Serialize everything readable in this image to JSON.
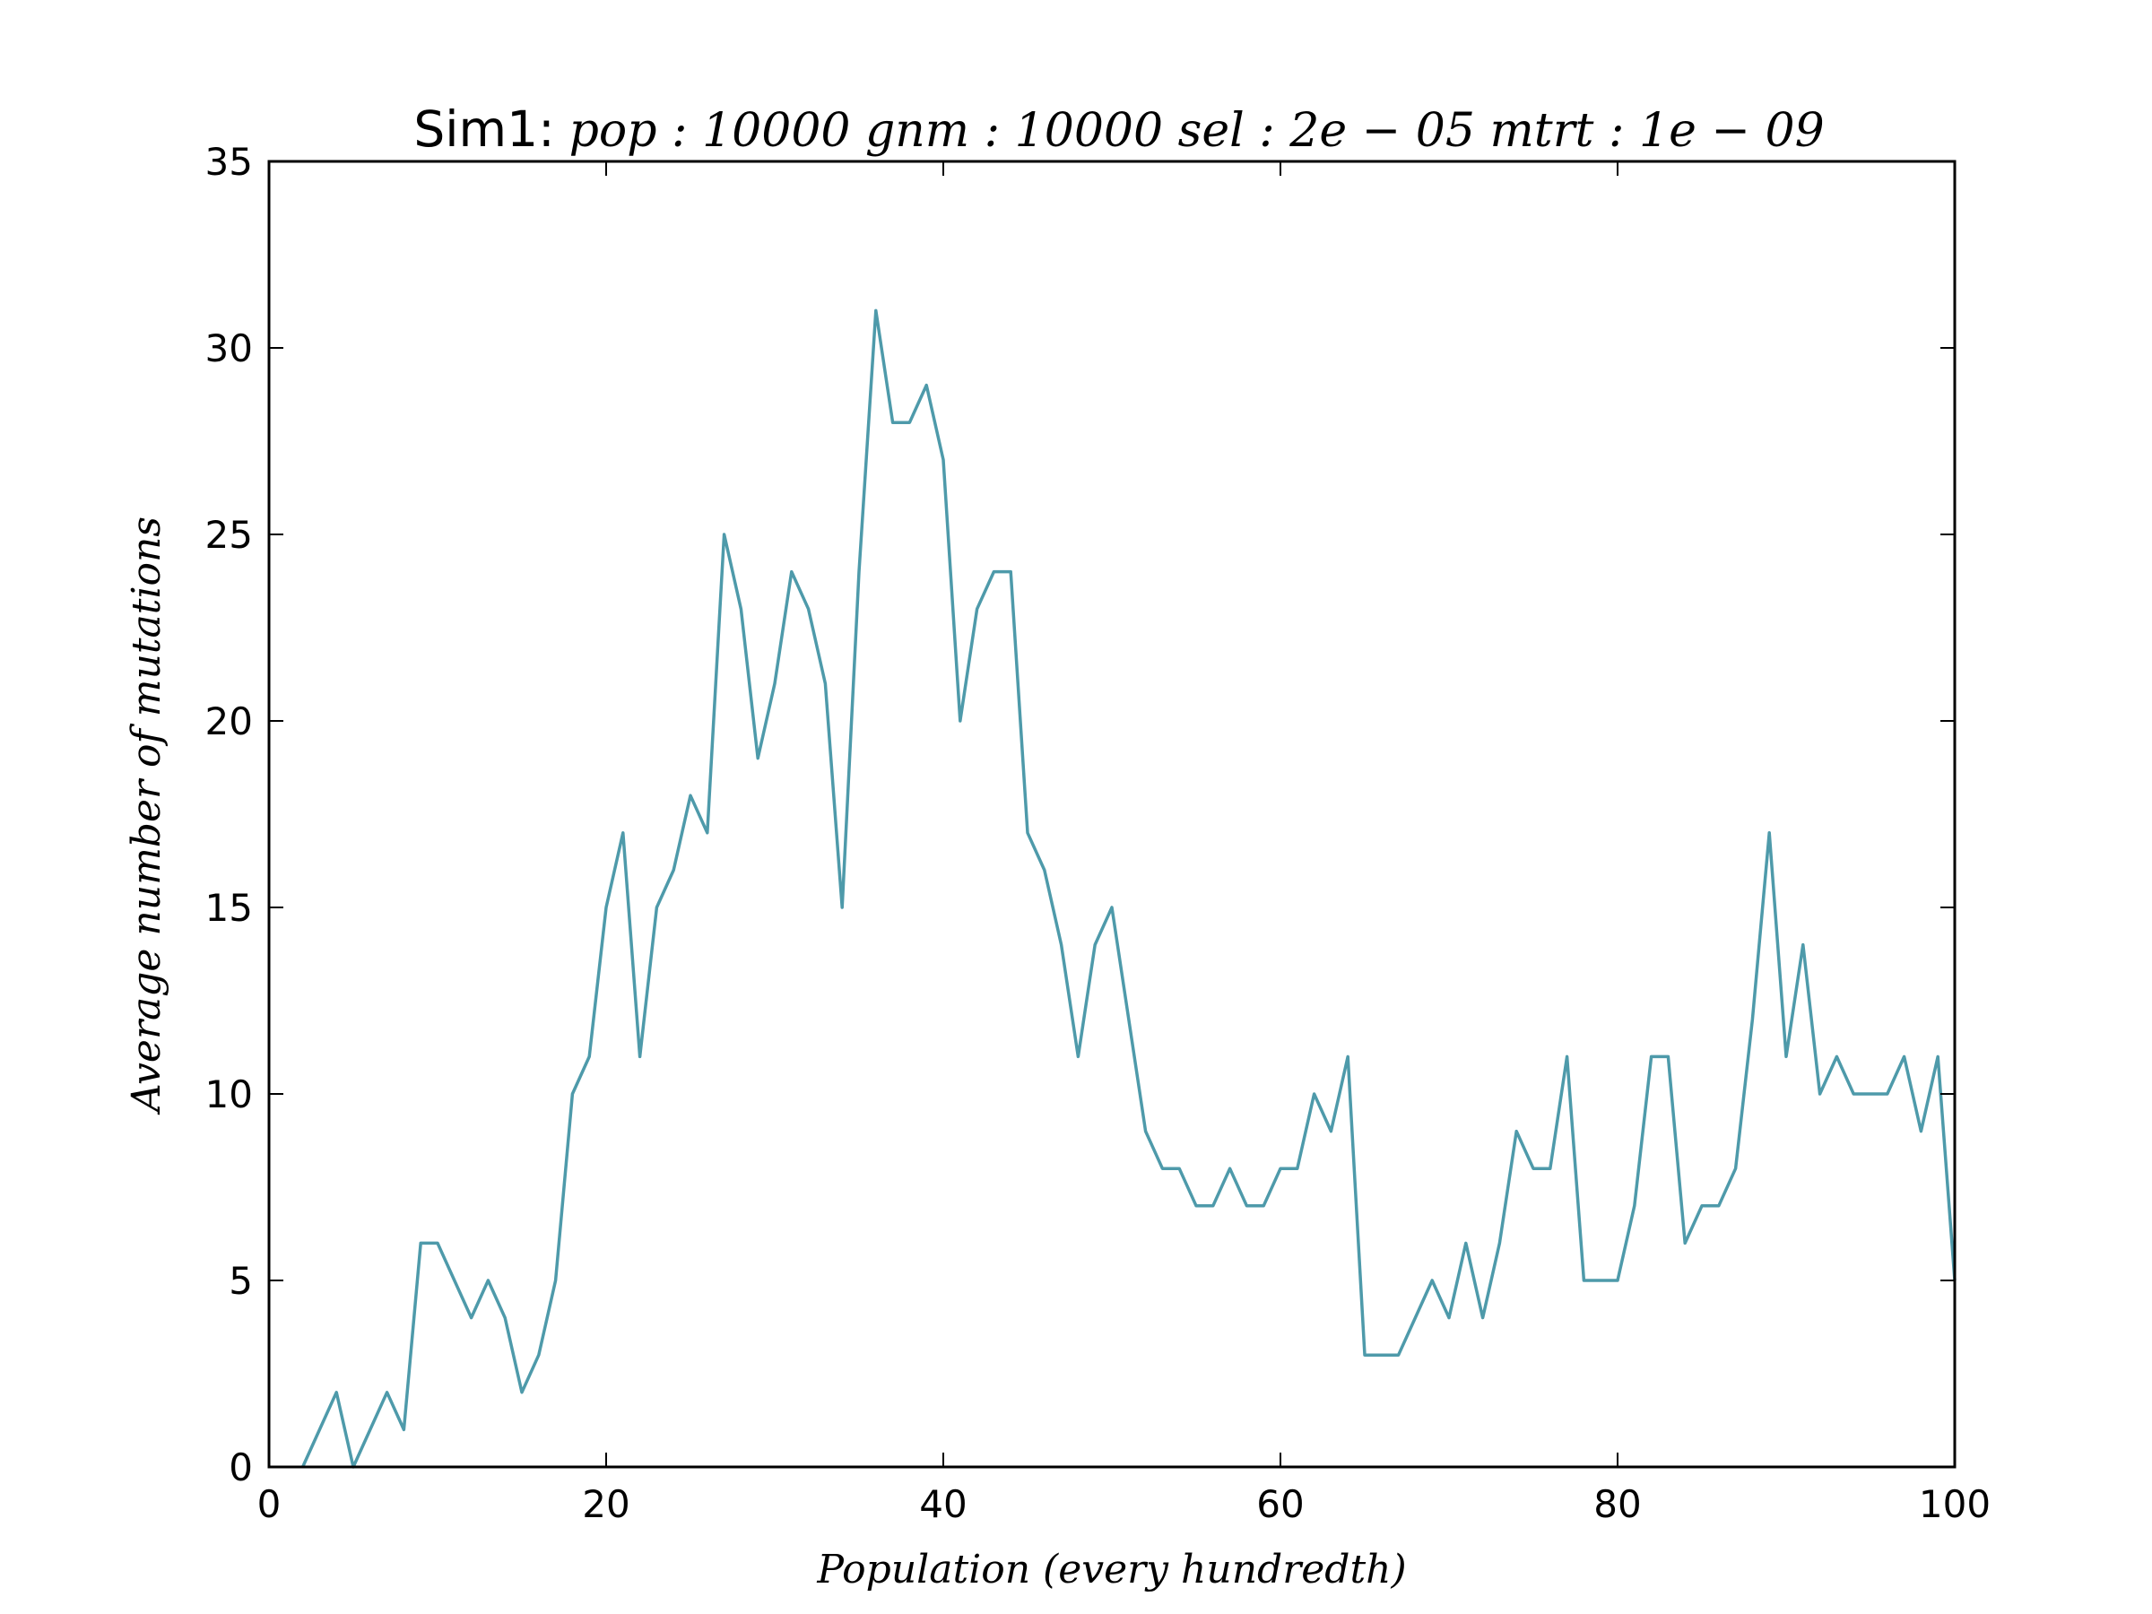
{
  "chart_data": {
    "type": "line",
    "title_prefix": "Sim1:",
    "title_params": "pop : 10000  gnm : 10000  sel : 2e − 05  mtrt : 1e − 09",
    "xlabel": "Population (every hundredth)",
    "ylabel": "Average number of mutations",
    "xlim": [
      0,
      100
    ],
    "ylim": [
      0,
      35
    ],
    "xticks": [
      0,
      20,
      40,
      60,
      80,
      100
    ],
    "yticks": [
      0,
      5,
      10,
      15,
      20,
      25,
      30,
      35
    ],
    "grid": false,
    "line_color": "#4e9aaa",
    "series": [
      {
        "x": [
          2,
          3,
          4,
          5,
          6,
          7,
          8,
          9,
          10,
          11,
          12,
          13,
          14,
          15,
          16,
          17,
          18,
          19,
          20,
          21,
          22,
          23,
          24,
          25,
          26,
          27,
          28,
          29,
          30,
          31,
          32,
          33,
          34,
          35,
          36,
          37,
          38,
          39,
          40,
          41,
          42,
          43,
          44,
          45,
          46,
          47,
          48,
          49,
          50,
          51,
          52,
          53,
          54,
          55,
          56,
          57,
          58,
          59,
          60,
          61,
          62,
          63,
          64,
          65,
          66,
          67,
          68,
          69,
          70,
          71,
          72,
          73,
          74,
          75,
          76,
          77,
          78,
          79,
          80,
          81,
          82,
          83,
          84,
          85,
          86,
          87,
          88,
          89,
          90,
          91,
          92,
          93,
          94,
          95,
          96,
          97,
          98,
          99,
          100
        ],
        "values": [
          0,
          1,
          2,
          0,
          1,
          2,
          1,
          6,
          6,
          5,
          4,
          5,
          4,
          2,
          3,
          5,
          10,
          11,
          15,
          17,
          11,
          15,
          16,
          18,
          17,
          25,
          23,
          19,
          21,
          24,
          23,
          21,
          15,
          24,
          31,
          28,
          28,
          29,
          27,
          20,
          23,
          24,
          24,
          17,
          16,
          14,
          11,
          14,
          15,
          12,
          9,
          8,
          8,
          7,
          7,
          8,
          7,
          7,
          8,
          8,
          10,
          9,
          11,
          3,
          3,
          3,
          4,
          5,
          4,
          6,
          4,
          6,
          9,
          8,
          8,
          11,
          5,
          5,
          5,
          7,
          11,
          11,
          6,
          7,
          7,
          8,
          12,
          17,
          11,
          14,
          10,
          11,
          10,
          10,
          10,
          11,
          9,
          11,
          5
        ]
      }
    ]
  }
}
